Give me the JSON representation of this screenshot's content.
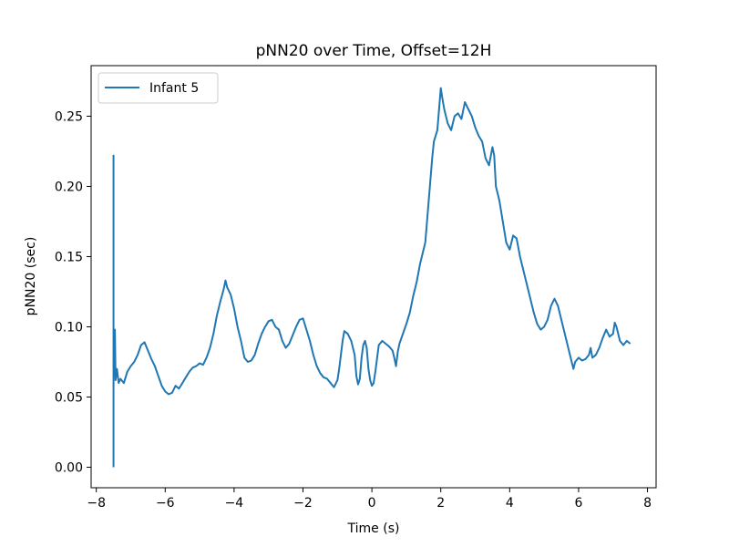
{
  "chart_data": {
    "type": "line",
    "title": "pNN20 over Time, Offset=12H",
    "xlabel": "Time (s)",
    "ylabel": "pNN20 (sec)",
    "xlim": [
      -8.15,
      8.25
    ],
    "ylim": [
      -0.0146,
      0.286
    ],
    "xticks": [
      -8,
      -6,
      -4,
      -2,
      0,
      2,
      4,
      6,
      8
    ],
    "xtick_labels": [
      "−8",
      "−6",
      "−4",
      "−2",
      "0",
      "2",
      "4",
      "6",
      "8"
    ],
    "yticks": [
      0.0,
      0.05,
      0.1,
      0.15,
      0.2,
      0.25
    ],
    "ytick_labels": [
      "0.00",
      "0.05",
      "0.10",
      "0.15",
      "0.20",
      "0.25"
    ],
    "grid": false,
    "legend_position": "top-left",
    "series": [
      {
        "name": "Infant 5",
        "color": "#1f77b4",
        "points": [
          [
            -7.5,
            0.0
          ],
          [
            -7.5,
            0.222
          ],
          [
            -7.5,
            0.06
          ],
          [
            -7.46,
            0.098
          ],
          [
            -7.44,
            0.062
          ],
          [
            -7.4,
            0.07
          ],
          [
            -7.35,
            0.06
          ],
          [
            -7.3,
            0.063
          ],
          [
            -7.2,
            0.06
          ],
          [
            -7.1,
            0.068
          ],
          [
            -7.0,
            0.072
          ],
          [
            -6.9,
            0.075
          ],
          [
            -6.8,
            0.08
          ],
          [
            -6.7,
            0.087
          ],
          [
            -6.6,
            0.089
          ],
          [
            -6.5,
            0.083
          ],
          [
            -6.4,
            0.077
          ],
          [
            -6.3,
            0.072
          ],
          [
            -6.2,
            0.065
          ],
          [
            -6.1,
            0.058
          ],
          [
            -6.0,
            0.054
          ],
          [
            -5.9,
            0.052
          ],
          [
            -5.8,
            0.053
          ],
          [
            -5.7,
            0.058
          ],
          [
            -5.6,
            0.056
          ],
          [
            -5.5,
            0.06
          ],
          [
            -5.4,
            0.064
          ],
          [
            -5.3,
            0.068
          ],
          [
            -5.2,
            0.071
          ],
          [
            -5.1,
            0.072
          ],
          [
            -5.0,
            0.074
          ],
          [
            -4.9,
            0.073
          ],
          [
            -4.8,
            0.078
          ],
          [
            -4.7,
            0.085
          ],
          [
            -4.6,
            0.095
          ],
          [
            -4.5,
            0.108
          ],
          [
            -4.4,
            0.118
          ],
          [
            -4.3,
            0.127
          ],
          [
            -4.25,
            0.133
          ],
          [
            -4.2,
            0.128
          ],
          [
            -4.1,
            0.123
          ],
          [
            -4.0,
            0.113
          ],
          [
            -3.9,
            0.1
          ],
          [
            -3.8,
            0.09
          ],
          [
            -3.7,
            0.078
          ],
          [
            -3.6,
            0.075
          ],
          [
            -3.5,
            0.076
          ],
          [
            -3.4,
            0.08
          ],
          [
            -3.3,
            0.088
          ],
          [
            -3.2,
            0.095
          ],
          [
            -3.1,
            0.1
          ],
          [
            -3.0,
            0.104
          ],
          [
            -2.9,
            0.105
          ],
          [
            -2.8,
            0.1
          ],
          [
            -2.7,
            0.098
          ],
          [
            -2.6,
            0.09
          ],
          [
            -2.5,
            0.085
          ],
          [
            -2.4,
            0.088
          ],
          [
            -2.3,
            0.094
          ],
          [
            -2.2,
            0.1
          ],
          [
            -2.1,
            0.105
          ],
          [
            -2.0,
            0.106
          ],
          [
            -1.9,
            0.098
          ],
          [
            -1.8,
            0.09
          ],
          [
            -1.7,
            0.08
          ],
          [
            -1.6,
            0.072
          ],
          [
            -1.5,
            0.067
          ],
          [
            -1.4,
            0.064
          ],
          [
            -1.3,
            0.063
          ],
          [
            -1.2,
            0.06
          ],
          [
            -1.1,
            0.057
          ],
          [
            -1.0,
            0.062
          ],
          [
            -0.95,
            0.07
          ],
          [
            -0.9,
            0.08
          ],
          [
            -0.85,
            0.09
          ],
          [
            -0.8,
            0.097
          ],
          [
            -0.7,
            0.095
          ],
          [
            -0.6,
            0.09
          ],
          [
            -0.5,
            0.08
          ],
          [
            -0.45,
            0.065
          ],
          [
            -0.4,
            0.059
          ],
          [
            -0.35,
            0.063
          ],
          [
            -0.3,
            0.078
          ],
          [
            -0.25,
            0.087
          ],
          [
            -0.2,
            0.09
          ],
          [
            -0.15,
            0.085
          ],
          [
            -0.1,
            0.07
          ],
          [
            -0.05,
            0.062
          ],
          [
            0.0,
            0.058
          ],
          [
            0.05,
            0.06
          ],
          [
            0.1,
            0.068
          ],
          [
            0.2,
            0.087
          ],
          [
            0.3,
            0.09
          ],
          [
            0.4,
            0.088
          ],
          [
            0.5,
            0.086
          ],
          [
            0.6,
            0.083
          ],
          [
            0.65,
            0.078
          ],
          [
            0.7,
            0.072
          ],
          [
            0.75,
            0.082
          ],
          [
            0.8,
            0.088
          ],
          [
            0.9,
            0.095
          ],
          [
            1.0,
            0.102
          ],
          [
            1.1,
            0.11
          ],
          [
            1.2,
            0.122
          ],
          [
            1.3,
            0.132
          ],
          [
            1.4,
            0.145
          ],
          [
            1.5,
            0.155
          ],
          [
            1.55,
            0.16
          ],
          [
            1.6,
            0.175
          ],
          [
            1.65,
            0.19
          ],
          [
            1.7,
            0.205
          ],
          [
            1.75,
            0.22
          ],
          [
            1.8,
            0.232
          ],
          [
            1.9,
            0.24
          ],
          [
            1.95,
            0.255
          ],
          [
            2.0,
            0.27
          ],
          [
            2.05,
            0.262
          ],
          [
            2.1,
            0.255
          ],
          [
            2.2,
            0.245
          ],
          [
            2.3,
            0.24
          ],
          [
            2.4,
            0.25
          ],
          [
            2.5,
            0.252
          ],
          [
            2.6,
            0.248
          ],
          [
            2.7,
            0.26
          ],
          [
            2.8,
            0.255
          ],
          [
            2.9,
            0.25
          ],
          [
            3.0,
            0.242
          ],
          [
            3.1,
            0.236
          ],
          [
            3.2,
            0.232
          ],
          [
            3.3,
            0.22
          ],
          [
            3.4,
            0.215
          ],
          [
            3.5,
            0.228
          ],
          [
            3.55,
            0.222
          ],
          [
            3.6,
            0.2
          ],
          [
            3.7,
            0.19
          ],
          [
            3.8,
            0.175
          ],
          [
            3.9,
            0.16
          ],
          [
            4.0,
            0.155
          ],
          [
            4.1,
            0.165
          ],
          [
            4.2,
            0.163
          ],
          [
            4.3,
            0.15
          ],
          [
            4.4,
            0.14
          ],
          [
            4.5,
            0.13
          ],
          [
            4.6,
            0.12
          ],
          [
            4.7,
            0.11
          ],
          [
            4.8,
            0.102
          ],
          [
            4.9,
            0.098
          ],
          [
            5.0,
            0.1
          ],
          [
            5.1,
            0.105
          ],
          [
            5.2,
            0.115
          ],
          [
            5.3,
            0.12
          ],
          [
            5.4,
            0.115
          ],
          [
            5.5,
            0.105
          ],
          [
            5.6,
            0.095
          ],
          [
            5.7,
            0.085
          ],
          [
            5.8,
            0.075
          ],
          [
            5.85,
            0.07
          ],
          [
            5.9,
            0.075
          ],
          [
            6.0,
            0.078
          ],
          [
            6.1,
            0.076
          ],
          [
            6.2,
            0.077
          ],
          [
            6.3,
            0.08
          ],
          [
            6.35,
            0.085
          ],
          [
            6.4,
            0.078
          ],
          [
            6.5,
            0.08
          ],
          [
            6.6,
            0.085
          ],
          [
            6.7,
            0.092
          ],
          [
            6.8,
            0.098
          ],
          [
            6.9,
            0.093
          ],
          [
            7.0,
            0.095
          ],
          [
            7.05,
            0.103
          ],
          [
            7.1,
            0.1
          ],
          [
            7.2,
            0.09
          ],
          [
            7.3,
            0.087
          ],
          [
            7.4,
            0.09
          ],
          [
            7.5,
            0.088
          ]
        ]
      }
    ]
  }
}
